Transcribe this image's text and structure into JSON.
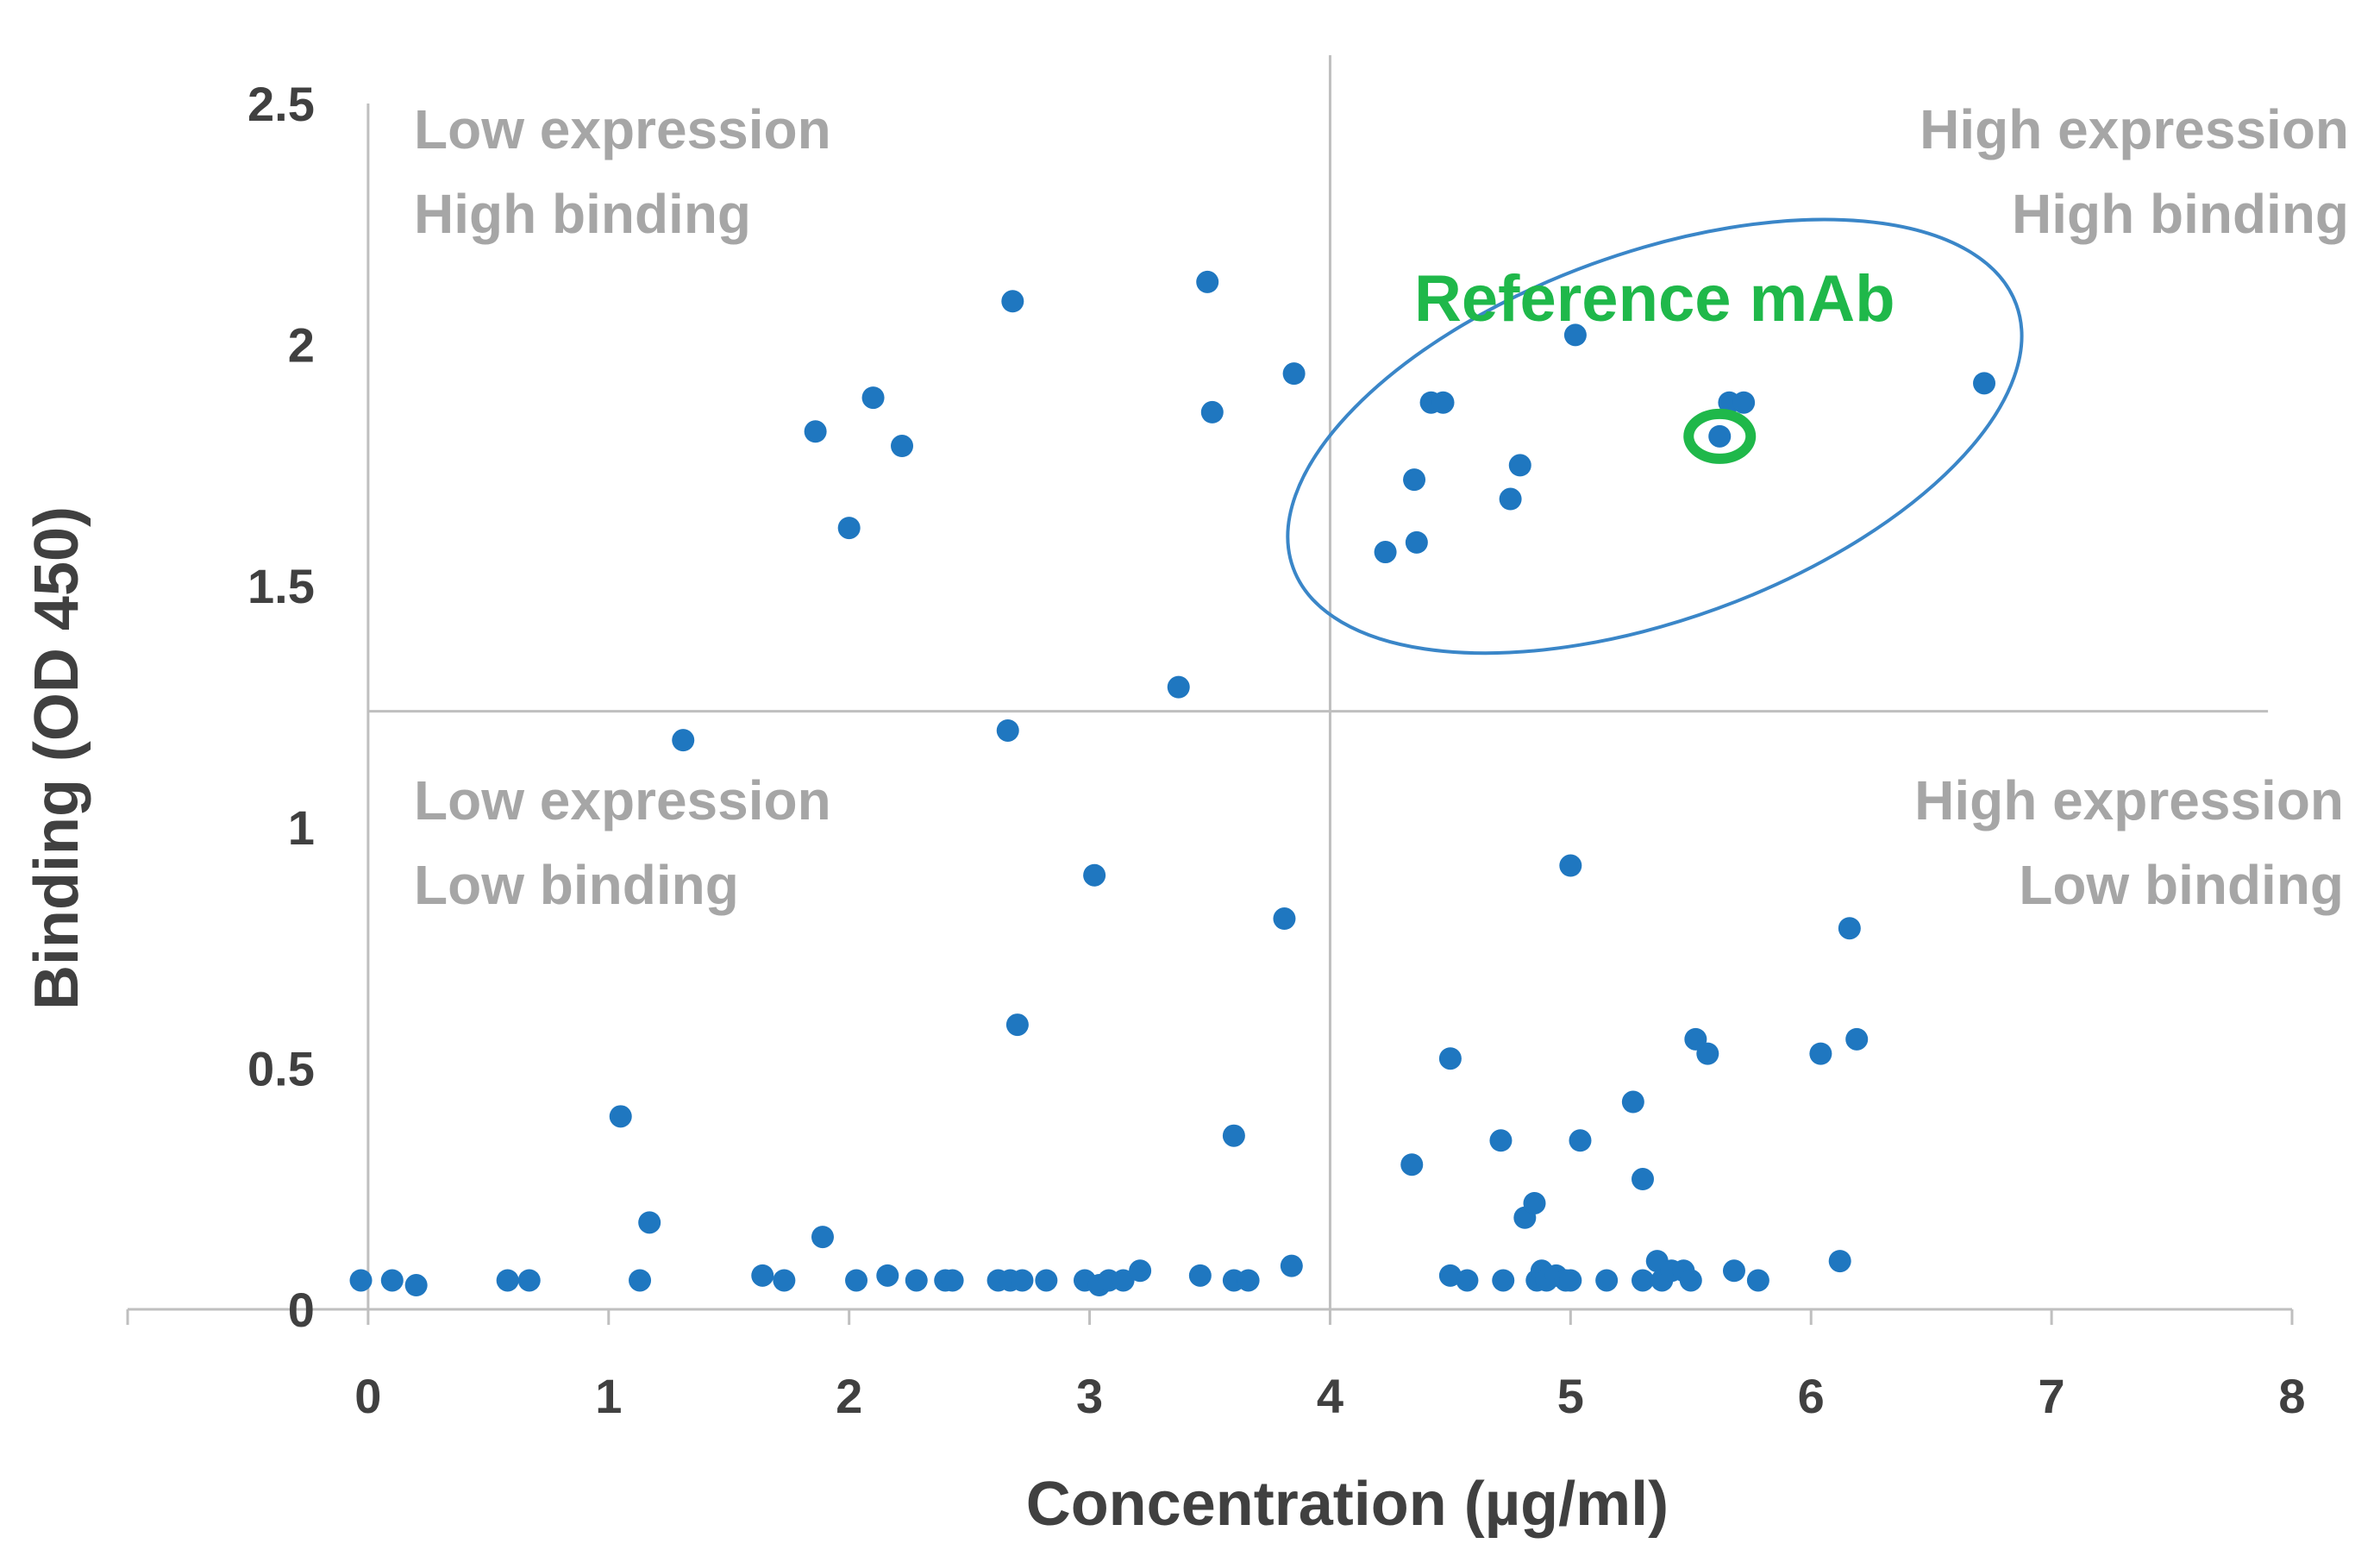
{
  "chart_data": {
    "type": "scatter",
    "title": "",
    "xlabel": "Concentration (µg/ml)",
    "ylabel": "Binding (OD 450)",
    "xlim": [
      -1,
      8
    ],
    "ylim": [
      0,
      2.5
    ],
    "x_ticks": [
      "0",
      "1",
      "2",
      "3",
      "4",
      "5",
      "6",
      "7",
      "8"
    ],
    "y_ticks": [
      "0",
      "0.5",
      "1",
      "1.5",
      "2",
      "2.5"
    ],
    "grid": false,
    "x_threshold": 4,
    "y_threshold": 1.24,
    "series_color": "#1f77c0",
    "quadrants": {
      "top_left": [
        "Low expression",
        "High binding"
      ],
      "top_right": [
        "High expression",
        "High binding"
      ],
      "bottom_left": [
        "Low expression",
        "Low binding"
      ],
      "bottom_right": [
        "High expression",
        "Low binding"
      ]
    },
    "annotation": {
      "label": "Reference mAb",
      "label_color": "#1fb84a",
      "ring_color": "#1fb84a",
      "ellipse_color": "#3a86c8",
      "highlight_point": [
        5.62,
        1.81
      ],
      "ellipse_center": [
        5.35,
        1.81
      ],
      "ellipse_rx_units": 1.6,
      "ellipse_ry_units": 0.38,
      "ellipse_rotation_deg": -20
    },
    "series": [
      {
        "name": "mAb variants",
        "points": [
          [
            -0.03,
            0.06
          ],
          [
            0.1,
            0.06
          ],
          [
            0.2,
            0.05
          ],
          [
            0.58,
            0.06
          ],
          [
            0.67,
            0.06
          ],
          [
            1.05,
            0.4
          ],
          [
            1.13,
            0.06
          ],
          [
            1.17,
            0.18
          ],
          [
            1.31,
            1.18
          ],
          [
            1.64,
            0.07
          ],
          [
            1.73,
            0.06
          ],
          [
            1.86,
            1.82
          ],
          [
            1.89,
            0.15
          ],
          [
            2.0,
            1.62
          ],
          [
            2.03,
            0.06
          ],
          [
            2.1,
            1.89
          ],
          [
            2.16,
            0.07
          ],
          [
            2.22,
            1.79
          ],
          [
            2.28,
            0.06
          ],
          [
            2.4,
            0.06
          ],
          [
            2.43,
            0.06
          ],
          [
            2.62,
            0.06
          ],
          [
            2.66,
            1.2
          ],
          [
            2.67,
            0.06
          ],
          [
            2.68,
            2.09
          ],
          [
            2.7,
            0.59
          ],
          [
            2.72,
            0.06
          ],
          [
            2.82,
            0.06
          ],
          [
            2.98,
            0.06
          ],
          [
            3.02,
            0.9
          ],
          [
            3.04,
            0.05
          ],
          [
            3.08,
            0.06
          ],
          [
            3.14,
            0.06
          ],
          [
            3.21,
            0.08
          ],
          [
            3.37,
            1.29
          ],
          [
            3.46,
            0.07
          ],
          [
            3.49,
            2.13
          ],
          [
            3.51,
            1.86
          ],
          [
            3.6,
            0.36
          ],
          [
            3.6,
            0.06
          ],
          [
            3.66,
            0.06
          ],
          [
            3.81,
            0.81
          ],
          [
            3.84,
            0.09
          ],
          [
            3.85,
            1.94
          ],
          [
            4.23,
            1.57
          ],
          [
            4.34,
            0.3
          ],
          [
            4.35,
            1.72
          ],
          [
            4.36,
            1.59
          ],
          [
            4.42,
            1.88
          ],
          [
            4.47,
            1.88
          ],
          [
            4.5,
            0.52
          ],
          [
            4.5,
            0.07
          ],
          [
            4.57,
            0.06
          ],
          [
            4.71,
            0.35
          ],
          [
            4.72,
            0.06
          ],
          [
            4.75,
            1.68
          ],
          [
            4.79,
            1.75
          ],
          [
            4.81,
            0.19
          ],
          [
            4.85,
            0.22
          ],
          [
            4.86,
            0.06
          ],
          [
            4.88,
            0.08
          ],
          [
            4.9,
            0.06
          ],
          [
            4.94,
            0.07
          ],
          [
            4.98,
            0.06
          ],
          [
            5.0,
            0.06
          ],
          [
            5.0,
            0.92
          ],
          [
            5.02,
            2.02
          ],
          [
            5.04,
            0.35
          ],
          [
            5.15,
            0.06
          ],
          [
            5.26,
            0.43
          ],
          [
            5.3,
            0.27
          ],
          [
            5.3,
            0.06
          ],
          [
            5.36,
            0.1
          ],
          [
            5.38,
            0.06
          ],
          [
            5.42,
            0.08
          ],
          [
            5.47,
            0.08
          ],
          [
            5.5,
            0.06
          ],
          [
            5.52,
            0.56
          ],
          [
            5.57,
            0.53
          ],
          [
            5.62,
            1.81
          ],
          [
            5.66,
            1.88
          ],
          [
            5.68,
            0.08
          ],
          [
            5.72,
            1.88
          ],
          [
            5.78,
            0.06
          ],
          [
            6.04,
            0.53
          ],
          [
            6.12,
            0.1
          ],
          [
            6.16,
            0.79
          ],
          [
            6.19,
            0.56
          ],
          [
            6.72,
            1.92
          ]
        ]
      }
    ]
  }
}
